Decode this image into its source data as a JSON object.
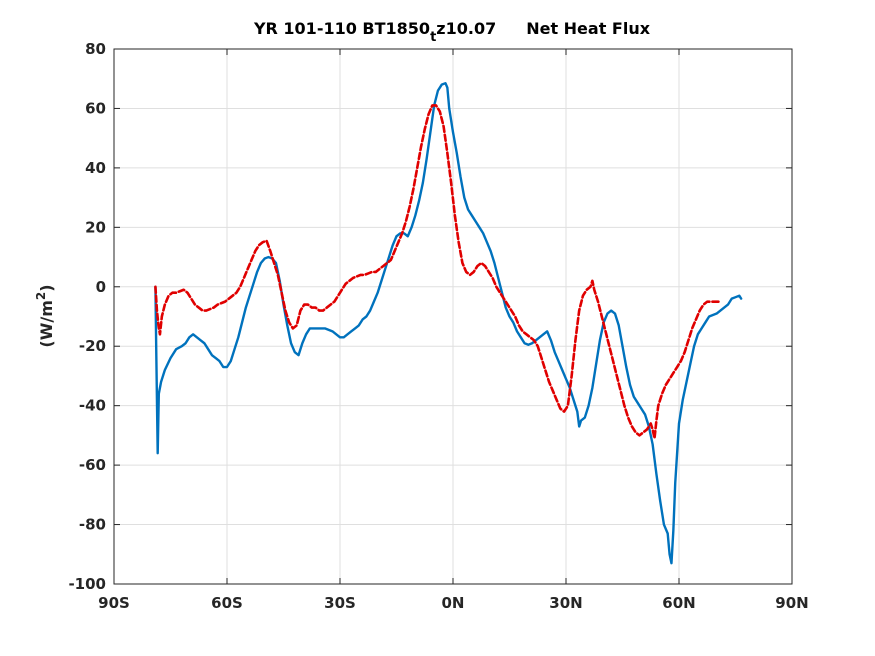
{
  "chart_data": {
    "type": "line",
    "title": {
      "main": "YR 101-110 BT1850",
      "subscript": "t",
      "suffix": "z10.07",
      "right": "Net Heat Flux"
    },
    "ylabel": {
      "main": "(W/m",
      "superscript": "2",
      "close": ")"
    },
    "xlabel": "",
    "xlim": [
      -90,
      90
    ],
    "ylim": [
      -100,
      80
    ],
    "grid": true,
    "x_ticks": [
      -90,
      -60,
      -30,
      0,
      30,
      60,
      90
    ],
    "x_tick_labels": [
      "90S",
      "60S",
      "30S",
      "0N",
      "30N",
      "60N",
      "90N"
    ],
    "y_ticks": [
      -100,
      -80,
      -60,
      -40,
      -20,
      0,
      20,
      40,
      60,
      80
    ],
    "y_tick_labels": [
      "-100",
      "-80",
      "-60",
      "-40",
      "-20",
      "0",
      "20",
      "40",
      "60",
      "80"
    ],
    "series": [
      {
        "color": "#0072BD",
        "style": "solid",
        "points": [
          [
            -79,
            0
          ],
          [
            -78.8,
            -20
          ],
          [
            -78.6,
            -38
          ],
          [
            -78.4,
            -56
          ],
          [
            -78.1,
            -36
          ],
          [
            -77.5,
            -32
          ],
          [
            -76.5,
            -28
          ],
          [
            -75,
            -24
          ],
          [
            -73.5,
            -21
          ],
          [
            -72,
            -20
          ],
          [
            -71,
            -19
          ],
          [
            -70,
            -17
          ],
          [
            -69,
            -16
          ],
          [
            -68,
            -17
          ],
          [
            -67,
            -18
          ],
          [
            -66,
            -19
          ],
          [
            -65,
            -21
          ],
          [
            -64,
            -23
          ],
          [
            -63,
            -24
          ],
          [
            -62,
            -25
          ],
          [
            -61,
            -27
          ],
          [
            -60,
            -27
          ],
          [
            -59,
            -25
          ],
          [
            -58,
            -21
          ],
          [
            -57,
            -17
          ],
          [
            -56,
            -12
          ],
          [
            -55,
            -7
          ],
          [
            -54,
            -3
          ],
          [
            -53,
            1
          ],
          [
            -52,
            5
          ],
          [
            -51,
            8
          ],
          [
            -50,
            9.5
          ],
          [
            -49,
            10
          ],
          [
            -48,
            9.5
          ],
          [
            -47,
            8
          ],
          [
            -46,
            2
          ],
          [
            -45,
            -6
          ],
          [
            -44,
            -13
          ],
          [
            -43,
            -19
          ],
          [
            -42,
            -22
          ],
          [
            -41,
            -23
          ],
          [
            -40,
            -19
          ],
          [
            -39,
            -16
          ],
          [
            -38,
            -14
          ],
          [
            -37,
            -14
          ],
          [
            -36,
            -14
          ],
          [
            -35,
            -14
          ],
          [
            -34,
            -14
          ],
          [
            -33,
            -14.5
          ],
          [
            -32,
            -15
          ],
          [
            -31,
            -16
          ],
          [
            -30,
            -17
          ],
          [
            -29,
            -17
          ],
          [
            -28,
            -16
          ],
          [
            -27,
            -15
          ],
          [
            -26,
            -14
          ],
          [
            -25,
            -13
          ],
          [
            -24,
            -11
          ],
          [
            -23,
            -10
          ],
          [
            -22,
            -8
          ],
          [
            -21,
            -5
          ],
          [
            -20,
            -2
          ],
          [
            -19,
            2
          ],
          [
            -18,
            6
          ],
          [
            -17,
            10
          ],
          [
            -16,
            14
          ],
          [
            -15,
            17
          ],
          [
            -14,
            18
          ],
          [
            -13,
            18
          ],
          [
            -12,
            17
          ],
          [
            -11,
            20
          ],
          [
            -10,
            24
          ],
          [
            -9,
            29
          ],
          [
            -8,
            35
          ],
          [
            -7,
            43
          ],
          [
            -6,
            52
          ],
          [
            -5,
            61
          ],
          [
            -4,
            66
          ],
          [
            -3,
            68
          ],
          [
            -2,
            68.5
          ],
          [
            -1.5,
            67
          ],
          [
            -1,
            60
          ],
          [
            0,
            52
          ],
          [
            1,
            45
          ],
          [
            2,
            37
          ],
          [
            3,
            30
          ],
          [
            4,
            26
          ],
          [
            5,
            24
          ],
          [
            6,
            22
          ],
          [
            7,
            20
          ],
          [
            8,
            18
          ],
          [
            9,
            15
          ],
          [
            10,
            12
          ],
          [
            11,
            8
          ],
          [
            12,
            3
          ],
          [
            13,
            -2
          ],
          [
            14,
            -7
          ],
          [
            15,
            -10
          ],
          [
            16,
            -12
          ],
          [
            17,
            -15
          ],
          [
            18,
            -17
          ],
          [
            19,
            -19
          ],
          [
            20,
            -19.5
          ],
          [
            21,
            -19
          ],
          [
            22,
            -18
          ],
          [
            23,
            -17
          ],
          [
            24,
            -16
          ],
          [
            25,
            -15
          ],
          [
            26,
            -18
          ],
          [
            27,
            -22
          ],
          [
            28,
            -25
          ],
          [
            29,
            -28
          ],
          [
            30,
            -31
          ],
          [
            31,
            -34
          ],
          [
            32,
            -38
          ],
          [
            33,
            -42
          ],
          [
            33.5,
            -47
          ],
          [
            34,
            -45
          ],
          [
            35,
            -44
          ],
          [
            36,
            -40
          ],
          [
            37,
            -34
          ],
          [
            38,
            -26
          ],
          [
            39,
            -18
          ],
          [
            40,
            -12
          ],
          [
            41,
            -9
          ],
          [
            42,
            -8
          ],
          [
            43,
            -9
          ],
          [
            44,
            -13
          ],
          [
            45,
            -20
          ],
          [
            46,
            -27
          ],
          [
            47,
            -33
          ],
          [
            48,
            -37
          ],
          [
            49,
            -39
          ],
          [
            50,
            -41
          ],
          [
            51,
            -43
          ],
          [
            52,
            -47
          ],
          [
            53,
            -53
          ],
          [
            54,
            -63
          ],
          [
            55,
            -72
          ],
          [
            56,
            -80
          ],
          [
            57,
            -83
          ],
          [
            57.5,
            -90
          ],
          [
            58,
            -93
          ],
          [
            58.5,
            -82
          ],
          [
            59,
            -66
          ],
          [
            60,
            -46
          ],
          [
            61,
            -38
          ],
          [
            62,
            -32
          ],
          [
            63,
            -26
          ],
          [
            64,
            -20
          ],
          [
            65,
            -16
          ],
          [
            66,
            -14
          ],
          [
            67,
            -12
          ],
          [
            68,
            -10
          ],
          [
            69,
            -9.5
          ],
          [
            70,
            -9
          ],
          [
            71,
            -8
          ],
          [
            72,
            -7
          ],
          [
            73,
            -6
          ],
          [
            74,
            -4
          ],
          [
            75,
            -3.5
          ],
          [
            76,
            -3
          ],
          [
            76.5,
            -4
          ]
        ]
      },
      {
        "color": "#E00000",
        "style": "dashed",
        "points": [
          [
            -79,
            0
          ],
          [
            -78.6,
            -8
          ],
          [
            -78.2,
            -13
          ],
          [
            -77.8,
            -16
          ],
          [
            -77.3,
            -10
          ],
          [
            -76.5,
            -6
          ],
          [
            -75.5,
            -3
          ],
          [
            -74.5,
            -2
          ],
          [
            -73.5,
            -2
          ],
          [
            -72.5,
            -1.5
          ],
          [
            -71.5,
            -1
          ],
          [
            -70.5,
            -2
          ],
          [
            -69.5,
            -4
          ],
          [
            -68.5,
            -6
          ],
          [
            -67.5,
            -7
          ],
          [
            -66.5,
            -8
          ],
          [
            -65.5,
            -8
          ],
          [
            -64.5,
            -7.5
          ],
          [
            -63.5,
            -7
          ],
          [
            -62.5,
            -6
          ],
          [
            -61.5,
            -5.5
          ],
          [
            -60.5,
            -5
          ],
          [
            -59.5,
            -4
          ],
          [
            -58.5,
            -3
          ],
          [
            -57.5,
            -2
          ],
          [
            -56.5,
            0
          ],
          [
            -55.5,
            3
          ],
          [
            -54.5,
            6
          ],
          [
            -53.5,
            9
          ],
          [
            -52.5,
            12
          ],
          [
            -51.5,
            14
          ],
          [
            -50.5,
            15
          ],
          [
            -49.5,
            15.5
          ],
          [
            -48.5,
            12
          ],
          [
            -47.5,
            8
          ],
          [
            -46.5,
            4
          ],
          [
            -45.5,
            -2
          ],
          [
            -44.5,
            -8
          ],
          [
            -43.5,
            -12
          ],
          [
            -42.5,
            -14
          ],
          [
            -41.5,
            -13
          ],
          [
            -40.5,
            -8
          ],
          [
            -39.5,
            -6
          ],
          [
            -38.5,
            -6
          ],
          [
            -37.5,
            -7
          ],
          [
            -36.5,
            -7
          ],
          [
            -35.5,
            -8
          ],
          [
            -34.5,
            -8
          ],
          [
            -33.5,
            -7
          ],
          [
            -32.5,
            -6
          ],
          [
            -31.5,
            -5
          ],
          [
            -30.5,
            -3
          ],
          [
            -29.5,
            -1
          ],
          [
            -28.5,
            1
          ],
          [
            -27.5,
            2
          ],
          [
            -26.5,
            3
          ],
          [
            -25.5,
            3.5
          ],
          [
            -24.5,
            4
          ],
          [
            -23.5,
            4
          ],
          [
            -22.5,
            4.5
          ],
          [
            -21.5,
            5
          ],
          [
            -20.5,
            5
          ],
          [
            -19.5,
            6
          ],
          [
            -18.5,
            7
          ],
          [
            -17.5,
            8
          ],
          [
            -16.5,
            9
          ],
          [
            -15.5,
            12
          ],
          [
            -14.5,
            15
          ],
          [
            -13.5,
            18
          ],
          [
            -12.5,
            22
          ],
          [
            -11.5,
            27
          ],
          [
            -10.5,
            33
          ],
          [
            -9.5,
            40
          ],
          [
            -8.5,
            47
          ],
          [
            -7.5,
            53
          ],
          [
            -6.5,
            58
          ],
          [
            -5.5,
            61
          ],
          [
            -4.5,
            61
          ],
          [
            -3.5,
            59
          ],
          [
            -2.5,
            54
          ],
          [
            -1.5,
            45
          ],
          [
            -0.5,
            35
          ],
          [
            0.5,
            24
          ],
          [
            1.5,
            15
          ],
          [
            2.5,
            8
          ],
          [
            3.5,
            5
          ],
          [
            4.5,
            4
          ],
          [
            5.5,
            5
          ],
          [
            6.5,
            7
          ],
          [
            7.5,
            8
          ],
          [
            8.5,
            7
          ],
          [
            9.5,
            5
          ],
          [
            10.5,
            3
          ],
          [
            11.5,
            0
          ],
          [
            12.5,
            -2
          ],
          [
            13.5,
            -4
          ],
          [
            14.5,
            -6
          ],
          [
            15.5,
            -8
          ],
          [
            16.5,
            -10
          ],
          [
            17.5,
            -13
          ],
          [
            18.5,
            -15
          ],
          [
            19.5,
            -16
          ],
          [
            20.5,
            -17
          ],
          [
            21.5,
            -18
          ],
          [
            22.5,
            -20
          ],
          [
            23.5,
            -24
          ],
          [
            24.5,
            -28
          ],
          [
            25.5,
            -32
          ],
          [
            26.5,
            -35
          ],
          [
            27.5,
            -38
          ],
          [
            28.5,
            -41
          ],
          [
            29.5,
            -42
          ],
          [
            30.5,
            -40
          ],
          [
            31.5,
            -30
          ],
          [
            32.5,
            -18
          ],
          [
            33.5,
            -8
          ],
          [
            34.5,
            -3
          ],
          [
            35.5,
            -1
          ],
          [
            36.5,
            0
          ],
          [
            37,
            2
          ],
          [
            37.5,
            -1
          ],
          [
            38.5,
            -5
          ],
          [
            39.5,
            -10
          ],
          [
            40.5,
            -15
          ],
          [
            41.5,
            -20
          ],
          [
            42.5,
            -25
          ],
          [
            43.5,
            -30
          ],
          [
            44.5,
            -35
          ],
          [
            45.5,
            -40
          ],
          [
            46.5,
            -44
          ],
          [
            47.5,
            -47
          ],
          [
            48.5,
            -49
          ],
          [
            49.5,
            -50
          ],
          [
            50.5,
            -49
          ],
          [
            51.5,
            -48
          ],
          [
            52.5,
            -46
          ],
          [
            53,
            -48
          ],
          [
            53.5,
            -51
          ],
          [
            54,
            -45
          ],
          [
            54.5,
            -40
          ],
          [
            55.5,
            -36
          ],
          [
            56.5,
            -33
          ],
          [
            57.5,
            -31
          ],
          [
            58.5,
            -29
          ],
          [
            59.5,
            -27
          ],
          [
            60.5,
            -25
          ],
          [
            61.5,
            -22
          ],
          [
            62.5,
            -18
          ],
          [
            63.5,
            -14
          ],
          [
            64.5,
            -11
          ],
          [
            65.5,
            -8
          ],
          [
            66.5,
            -6
          ],
          [
            67.5,
            -5
          ],
          [
            68.5,
            -5
          ],
          [
            69.5,
            -5
          ],
          [
            70.5,
            -5
          ]
        ]
      }
    ]
  }
}
